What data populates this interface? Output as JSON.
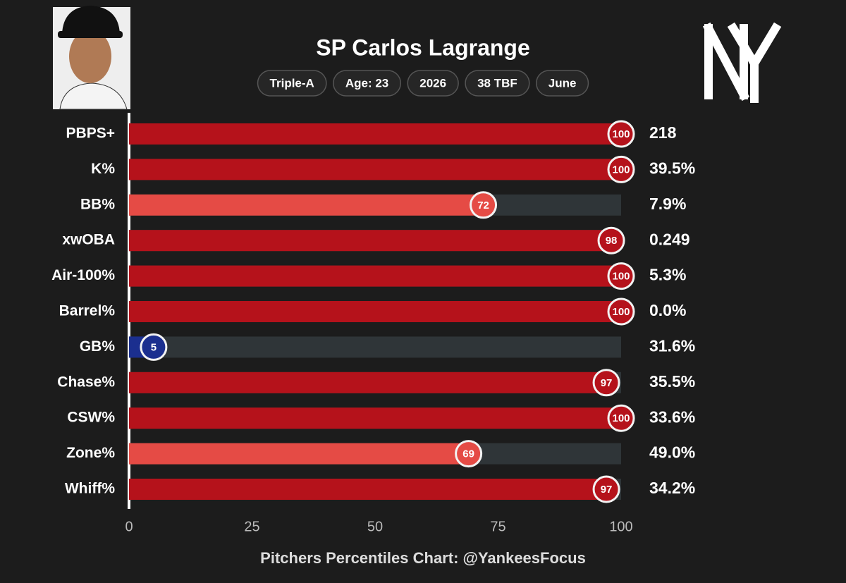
{
  "chart_data": {
    "type": "bar",
    "title": "SP Carlos Lagrange",
    "badges": [
      "Triple-A",
      "Age: 23",
      "2026",
      "38 TBF",
      "June"
    ],
    "categories": [
      "PBPS+",
      "K%",
      "BB%",
      "xwOBA",
      "Air-100%",
      "Barrel%",
      "GB%",
      "Chase%",
      "CSW%",
      "Zone%",
      "Whiff%"
    ],
    "values": [
      100,
      100,
      72,
      98,
      100,
      100,
      5,
      97,
      100,
      69,
      97
    ],
    "colors": [
      "#b5121b",
      "#b5121b",
      "#e54b45",
      "#b5121b",
      "#b5121b",
      "#b5121b",
      "#1b2f8f",
      "#b5121b",
      "#b5121b",
      "#e54b45",
      "#b5121b"
    ],
    "stats": [
      "218",
      "39.5%",
      "7.9%",
      "0.249",
      "5.3%",
      "0.0%",
      "31.6%",
      "35.5%",
      "33.6%",
      "49.0%",
      "34.2%"
    ],
    "xlim": [
      0,
      100
    ],
    "xticks": [
      0,
      25,
      50,
      75,
      100
    ],
    "track_color": "#2f3538",
    "footer": "Pitchers Percentiles Chart: @YankeesFocus"
  }
}
